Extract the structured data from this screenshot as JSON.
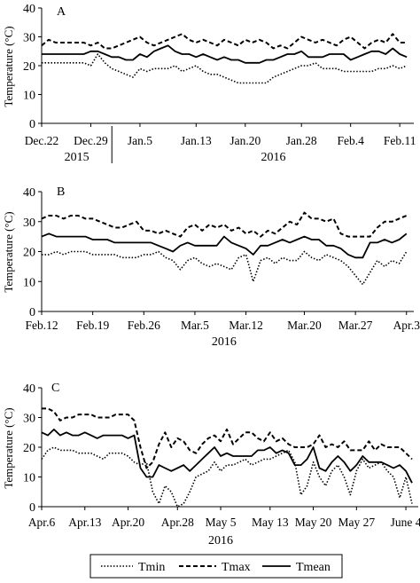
{
  "legend": {
    "entries": [
      {
        "label": "Tmin",
        "dash": "dotted"
      },
      {
        "label": "Tmax",
        "dash": "dashed"
      },
      {
        "label": "Tmean",
        "dash": "solid"
      }
    ],
    "placement": "bottom-center"
  },
  "chart_data": [
    {
      "type": "line",
      "panel_label": "A",
      "ylabel": "Temperature (°C)",
      "ylim": [
        0,
        40
      ],
      "yticks": [
        0,
        10,
        20,
        30,
        40
      ],
      "xlim": [
        0,
        53
      ],
      "x_tick_labels": [
        {
          "text": "Dec.22",
          "x": 0
        },
        {
          "text": "Dec.29",
          "x": 7
        },
        {
          "text": "Jan.5",
          "x": 14
        },
        {
          "text": "Jan.13",
          "x": 22
        },
        {
          "text": "Jan.20",
          "x": 29
        },
        {
          "text": "Jan.28",
          "x": 37
        },
        {
          "text": "Feb.4",
          "x": 44
        },
        {
          "text": "Feb.11",
          "x": 51
        }
      ],
      "year_labels": [
        {
          "text": "2015",
          "x": 5
        },
        {
          "text": "2016",
          "x": 33
        }
      ],
      "year_separator_x": 10,
      "grid": false,
      "series": [
        {
          "name": "Tmin",
          "values": [
            21,
            21,
            21,
            21,
            21,
            21,
            21,
            20,
            24,
            21,
            19,
            18,
            17,
            16,
            19,
            18,
            19,
            19,
            19,
            20,
            18,
            19,
            20,
            18,
            17,
            17,
            16,
            15,
            14,
            14,
            14,
            14,
            14,
            16,
            17,
            18,
            19,
            20,
            20,
            21,
            19,
            19,
            19,
            18,
            18,
            18,
            18,
            18,
            19,
            19,
            20,
            19,
            20
          ]
        },
        {
          "name": "Tmax",
          "values": [
            27,
            29,
            28,
            28,
            28,
            28,
            28,
            27,
            28,
            26,
            26,
            27,
            28,
            29,
            30,
            28,
            27,
            28,
            29,
            30,
            31,
            29,
            28,
            29,
            28,
            27,
            29,
            28,
            27,
            29,
            28,
            29,
            28,
            26,
            27,
            26,
            28,
            30,
            29,
            28,
            29,
            28,
            27,
            29,
            30,
            28,
            26,
            28,
            29,
            28,
            31,
            28,
            28
          ]
        },
        {
          "name": "Tmean",
          "values": [
            24,
            24,
            24,
            24,
            24,
            24,
            24,
            25,
            25,
            24,
            23,
            23,
            22,
            22,
            24,
            23,
            25,
            26,
            27,
            25,
            24,
            24,
            23,
            24,
            23,
            22,
            23,
            22,
            22,
            21,
            21,
            21,
            22,
            22,
            23,
            24,
            24,
            25,
            23,
            23,
            23,
            24,
            24,
            24,
            22,
            23,
            24,
            25,
            25,
            24,
            26,
            24,
            23
          ]
        }
      ]
    },
    {
      "type": "line",
      "panel_label": "B",
      "ylabel": "Temperature (°C)",
      "ylim": [
        0,
        40
      ],
      "yticks": [
        0,
        10,
        20,
        30,
        40
      ],
      "xlim": [
        0,
        51
      ],
      "x_tick_labels": [
        {
          "text": "Feb.12",
          "x": 0
        },
        {
          "text": "Feb.19",
          "x": 7
        },
        {
          "text": "Feb.26",
          "x": 14
        },
        {
          "text": "Mar.5",
          "x": 21
        },
        {
          "text": "Mar.12",
          "x": 28
        },
        {
          "text": "Mar.20",
          "x": 36
        },
        {
          "text": "Mar.27",
          "x": 43
        },
        {
          "text": "Apr.3",
          "x": 50
        }
      ],
      "year_labels": [
        {
          "text": "2016",
          "x": 25
        }
      ],
      "grid": false,
      "series": [
        {
          "name": "Tmin",
          "values": [
            19,
            19,
            20,
            19,
            20,
            20,
            20,
            19,
            19,
            19,
            19,
            18,
            18,
            18,
            19,
            19,
            20,
            18,
            17,
            14,
            17,
            18,
            16,
            15,
            16,
            15,
            14,
            18,
            19,
            10,
            17,
            18,
            16,
            18,
            17,
            17,
            20,
            18,
            17,
            19,
            18,
            17,
            15,
            12,
            9,
            13,
            17,
            15,
            17,
            16,
            20
          ]
        },
        {
          "name": "Tmax",
          "values": [
            31,
            32,
            32,
            31,
            32,
            32,
            31,
            31,
            30,
            29,
            28,
            28,
            29,
            30,
            27,
            27,
            26,
            27,
            26,
            25,
            28,
            29,
            27,
            29,
            28,
            29,
            27,
            28,
            26,
            27,
            25,
            27,
            26,
            28,
            30,
            29,
            33,
            31,
            31,
            30,
            31,
            26,
            25,
            25,
            25,
            25,
            28,
            30,
            30,
            31,
            32
          ]
        },
        {
          "name": "Tmean",
          "values": [
            25,
            26,
            25,
            25,
            25,
            25,
            25,
            24,
            24,
            24,
            23,
            23,
            23,
            23,
            23,
            23,
            22,
            21,
            20,
            22,
            23,
            22,
            22,
            22,
            22,
            25,
            23,
            22,
            21,
            19,
            22,
            22,
            23,
            24,
            23,
            24,
            25,
            24,
            24,
            22,
            22,
            21,
            19,
            18,
            18,
            23,
            23,
            24,
            23,
            24,
            26
          ]
        }
      ]
    },
    {
      "type": "line",
      "panel_label": "C",
      "ylabel": "Temperature (°C)",
      "ylim": [
        0,
        40
      ],
      "yticks": [
        0,
        10,
        20,
        30,
        40
      ],
      "xlim": [
        0,
        61
      ],
      "x_tick_labels": [
        {
          "text": "Apr.6",
          "x": 0
        },
        {
          "text": "Apr.13",
          "x": 7
        },
        {
          "text": "Apr.20",
          "x": 14
        },
        {
          "text": "Apr.28",
          "x": 22
        },
        {
          "text": "May 5",
          "x": 29
        },
        {
          "text": "May 13",
          "x": 37
        },
        {
          "text": "May 20",
          "x": 44
        },
        {
          "text": "May 27",
          "x": 51
        },
        {
          "text": "June 4",
          "x": 59
        }
      ],
      "year_labels": [
        {
          "text": "2016",
          "x": 29
        }
      ],
      "grid": false,
      "series": [
        {
          "name": "Tmin",
          "values": [
            16,
            19,
            20,
            19,
            19,
            19,
            18,
            18,
            18,
            17,
            16,
            18,
            18,
            18,
            17,
            15,
            14,
            15,
            5,
            1,
            7,
            5,
            0,
            1,
            5,
            10,
            11,
            12,
            15,
            12,
            14,
            14,
            15,
            16,
            14,
            15,
            16,
            16,
            17,
            18,
            19,
            15,
            4,
            7,
            15,
            10,
            7,
            12,
            14,
            10,
            4,
            12,
            16,
            13,
            14,
            15,
            12,
            10,
            3,
            10,
            1
          ]
        },
        {
          "name": "Tmax",
          "values": [
            33,
            33,
            32,
            29,
            30,
            30,
            31,
            31,
            31,
            30,
            30,
            30,
            31,
            31,
            31,
            29,
            20,
            13,
            15,
            21,
            25,
            20,
            23,
            22,
            19,
            18,
            21,
            23,
            24,
            22,
            26,
            21,
            23,
            25,
            25,
            23,
            22,
            25,
            22,
            23,
            21,
            20,
            20,
            20,
            21,
            24,
            20,
            21,
            20,
            22,
            19,
            19,
            19,
            22,
            19,
            21,
            20,
            20,
            20,
            18,
            16
          ]
        },
        {
          "name": "Tmean",
          "values": [
            25,
            24,
            26,
            24,
            25,
            24,
            24,
            25,
            24,
            23,
            24,
            24,
            24,
            24,
            23,
            24,
            13,
            10,
            10,
            14,
            13,
            12,
            13,
            14,
            12,
            14,
            16,
            18,
            20,
            17,
            18,
            17,
            17,
            17,
            17,
            19,
            19,
            20,
            18,
            19,
            18,
            14,
            14,
            16,
            20,
            13,
            12,
            15,
            17,
            15,
            12,
            14,
            17,
            15,
            15,
            15,
            14,
            13,
            14,
            12,
            8
          ]
        }
      ]
    }
  ]
}
